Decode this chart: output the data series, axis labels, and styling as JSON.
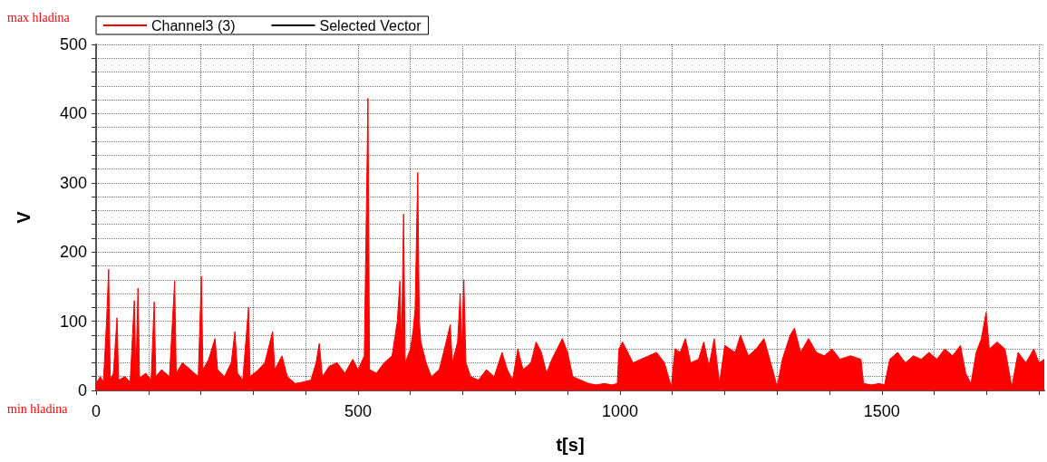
{
  "chart_data": {
    "type": "area",
    "xlabel": "t[s]",
    "ylabel": "V",
    "annotations": [
      "max hladina",
      "min hladina"
    ],
    "xlim": [
      0,
      1810
    ],
    "ylim": [
      0,
      500
    ],
    "xticks": [
      0,
      {
        "value": 100,
        "label": null
      },
      {
        "value": 200,
        "label": null
      },
      {
        "value": 300,
        "label": null
      },
      {
        "value": 400,
        "label": null
      },
      500,
      {
        "value": 600,
        "label": null
      },
      {
        "value": 700,
        "label": null
      },
      {
        "value": 800,
        "label": null
      },
      {
        "value": 900,
        "label": null
      },
      1000,
      {
        "value": 1100,
        "label": null
      },
      {
        "value": 1200,
        "label": null
      },
      {
        "value": 1300,
        "label": null
      },
      {
        "value": 1400,
        "label": null
      },
      1500,
      {
        "value": 1600,
        "label": null
      },
      {
        "value": 1700,
        "label": null
      },
      {
        "value": 1800,
        "label": null
      }
    ],
    "yticks": [
      0,
      {
        "value": 20,
        "label": null
      },
      {
        "value": 40,
        "label": null
      },
      {
        "value": 60,
        "label": null
      },
      {
        "value": 80,
        "label": null
      },
      100,
      {
        "value": 120,
        "label": null
      },
      {
        "value": 140,
        "label": null
      },
      {
        "value": 160,
        "label": null
      },
      {
        "value": 180,
        "label": null
      },
      200,
      {
        "value": 220,
        "label": null
      },
      {
        "value": 240,
        "label": null
      },
      {
        "value": 260,
        "label": null
      },
      {
        "value": 280,
        "label": null
      },
      300,
      {
        "value": 320,
        "label": null
      },
      {
        "value": 340,
        "label": null
      },
      {
        "value": 360,
        "label": null
      },
      {
        "value": 380,
        "label": null
      },
      400,
      {
        "value": 420,
        "label": null
      },
      {
        "value": 440,
        "label": null
      },
      {
        "value": 460,
        "label": null
      },
      {
        "value": 480,
        "label": null
      },
      500
    ],
    "grid": true,
    "legend": "top left",
    "line_style": "solid",
    "marker": "none",
    "series": [
      {
        "name": "Channel3 (3)",
        "color": "#ff0000",
        "x": [
          0,
          8,
          14,
          20,
          24,
          27,
          33,
          40,
          43,
          55,
          65,
          73,
          76,
          80,
          83,
          95,
          105,
          111,
          114,
          125,
          140,
          150,
          153,
          165,
          180,
          195,
          201,
          204,
          215,
          227,
          232,
          245,
          258,
          265,
          270,
          280,
          291,
          294,
          310,
          322,
          337,
          341,
          355,
          365,
          380,
          395,
          410,
          420,
          426,
          432,
          445,
          460,
          475,
          490,
          500,
          512,
          519,
          522,
          535,
          550,
          565,
          575,
          580,
          583,
          587,
          590,
          600,
          605,
          609,
          614,
          617,
          620,
          630,
          640,
          655,
          665,
          676,
          680,
          690,
          695,
          698,
          702,
          706,
          715,
          730,
          745,
          760,
          775,
          785,
          795,
          805,
          815,
          830,
          840,
          850,
          860,
          870,
          880,
          890,
          900,
          910,
          925,
          940,
          955,
          970,
          985,
          995,
          998,
          1005,
          1015,
          1025,
          1040,
          1055,
          1070,
          1085,
          1098,
          1105,
          1115,
          1125,
          1135,
          1150,
          1160,
          1170,
          1180,
          1190,
          1200,
          1210,
          1220,
          1230,
          1245,
          1260,
          1275,
          1295,
          1300,
          1310,
          1325,
          1333,
          1345,
          1360,
          1375,
          1390,
          1405,
          1420,
          1440,
          1460,
          1465,
          1480,
          1495,
          1505,
          1515,
          1530,
          1545,
          1560,
          1575,
          1590,
          1605,
          1620,
          1635,
          1650,
          1660,
          1670,
          1680,
          1690,
          1699,
          1705,
          1720,
          1735,
          1748,
          1760,
          1775,
          1790,
          1800,
          1810
        ],
        "values": [
          10,
          20,
          12,
          100,
          175,
          15,
          25,
          105,
          15,
          20,
          12,
          130,
          20,
          148,
          18,
          25,
          15,
          128,
          20,
          30,
          20,
          158,
          25,
          40,
          30,
          20,
          165,
          30,
          45,
          75,
          30,
          20,
          40,
          85,
          25,
          15,
          120,
          20,
          30,
          40,
          85,
          30,
          50,
          20,
          10,
          12,
          15,
          40,
          68,
          20,
          35,
          40,
          25,
          45,
          30,
          50,
          422,
          30,
          25,
          40,
          50,
          100,
          158,
          60,
          255,
          40,
          60,
          85,
          118,
          315,
          100,
          70,
          40,
          20,
          30,
          60,
          95,
          40,
          70,
          140,
          60,
          160,
          40,
          20,
          15,
          30,
          20,
          55,
          30,
          15,
          60,
          30,
          40,
          70,
          55,
          25,
          45,
          60,
          75,
          55,
          20,
          15,
          10,
          8,
          10,
          8,
          10,
          60,
          70,
          55,
          40,
          45,
          50,
          55,
          40,
          5,
          60,
          55,
          75,
          40,
          45,
          70,
          35,
          75,
          10,
          65,
          60,
          55,
          80,
          50,
          60,
          75,
          20,
          5,
          45,
          80,
          90,
          55,
          75,
          55,
          50,
          60,
          45,
          50,
          45,
          10,
          8,
          10,
          8,
          45,
          55,
          40,
          50,
          45,
          55,
          45,
          60,
          50,
          65,
          25,
          10,
          55,
          75,
          113,
          60,
          70,
          60,
          5,
          55,
          40,
          60,
          40,
          45
        ]
      },
      {
        "name": "Selected Vector",
        "color": "#000000",
        "type": "line"
      }
    ]
  }
}
